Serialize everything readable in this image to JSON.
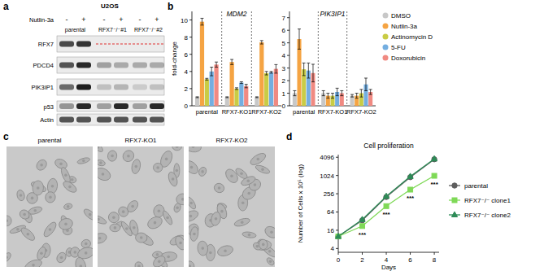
{
  "panel_labels": [
    "a",
    "b",
    "c",
    "d"
  ],
  "blot": {
    "cell_line": "U2OS",
    "treatment_label": "Nutlin-3a",
    "treatment": [
      "-",
      "+",
      "-",
      "+",
      "-",
      "+"
    ],
    "groups": [
      {
        "label": "parental",
        "lanes": [
          0,
          1
        ]
      },
      {
        "label": "RFX7⁻/⁻#1",
        "lanes": [
          2,
          3
        ]
      },
      {
        "label": "RFX7⁻/⁻#2",
        "lanes": [
          4,
          5
        ]
      }
    ],
    "rows": [
      {
        "name": "RFX7",
        "intensity": [
          0.75,
          0.85,
          0,
          0,
          0,
          0
        ],
        "knockout": true
      },
      {
        "name": "PDCD4",
        "intensity": [
          0.7,
          0.9,
          0.35,
          0.3,
          0.3,
          0.3
        ],
        "knockout": false
      },
      {
        "name": "PIK3IP1",
        "intensity": [
          0.6,
          0.95,
          0.2,
          0.25,
          0.15,
          0.2
        ],
        "knockout": false
      },
      {
        "name": "p53",
        "intensity": [
          0.4,
          0.9,
          0.35,
          0.9,
          0.35,
          0.9
        ],
        "knockout": false
      },
      {
        "name": "Actin",
        "intensity": [
          0.7,
          0.7,
          0.7,
          0.7,
          0.7,
          0.7
        ],
        "knockout": false
      }
    ]
  },
  "micrographs": {
    "titles": [
      "parental",
      "RFX7-KO1",
      "RFX7-KO2"
    ]
  },
  "chart_data": [
    {
      "type": "bar",
      "title": "MDM2",
      "y_label": "fold-change",
      "categories": [
        "parental",
        "RFX7-KO1",
        "RFX7-KO2"
      ],
      "ylim": [
        0,
        11
      ],
      "yticks": [
        0,
        2,
        4,
        6,
        8,
        10
      ],
      "grid": false,
      "series": [
        {
          "name": "DMSO",
          "color": "#c8c8c8",
          "values": [
            1,
            1,
            1
          ],
          "errors": [
            0.05,
            0.05,
            0.05
          ]
        },
        {
          "name": "Nutlin-3a",
          "color": "#f5a443",
          "values": [
            9.8,
            5.1,
            7.4
          ],
          "errors": [
            0.4,
            0.3,
            0.2
          ]
        },
        {
          "name": "Actinomycin D",
          "color": "#c9cc45",
          "values": [
            3.1,
            2.0,
            3.8
          ],
          "errors": [
            0.1,
            0.1,
            0.2
          ]
        },
        {
          "name": "5-FU",
          "color": "#74aee0",
          "values": [
            4.0,
            2.7,
            3.9
          ],
          "errors": [
            0.5,
            0.1,
            0.1
          ]
        },
        {
          "name": "Doxorubicin",
          "color": "#f08a82",
          "values": [
            4.8,
            2.3,
            4.3
          ],
          "errors": [
            0.3,
            0.2,
            0.5
          ]
        }
      ]
    },
    {
      "type": "bar",
      "title": "PIK3IP1",
      "categories": [
        "parental",
        "RFX7-KO1",
        "RFX7-KO2"
      ],
      "ylim": [
        0,
        7.5
      ],
      "yticks": [
        0,
        1,
        2,
        3,
        4,
        5,
        6,
        7
      ],
      "grid": false,
      "legend": "right",
      "series": [
        {
          "name": "DMSO",
          "color": "#c8c8c8",
          "values": [
            1,
            1,
            0.8
          ],
          "errors": [
            0.2,
            0.2,
            0.1
          ]
        },
        {
          "name": "Nutlin-3a",
          "color": "#f5a443",
          "values": [
            5.3,
            0.8,
            0.8
          ],
          "errors": [
            0.8,
            0.2,
            0.2
          ]
        },
        {
          "name": "Actinomycin D",
          "color": "#c9cc45",
          "values": [
            2.9,
            0.8,
            1.0
          ],
          "errors": [
            0.5,
            0.2,
            0.3
          ]
        },
        {
          "name": "5-FU",
          "color": "#74aee0",
          "values": [
            2.8,
            1.1,
            1.7
          ],
          "errors": [
            0.6,
            0.3,
            0.5
          ]
        },
        {
          "name": "Doxorubicin",
          "color": "#f08a82",
          "values": [
            2.6,
            1.0,
            1.1
          ],
          "errors": [
            0.7,
            0.2,
            0.2
          ]
        }
      ]
    },
    {
      "type": "line",
      "title": "Cell proliferation",
      "x_label": "Days",
      "y_label": "Number of Cells x 10⁵ (log)",
      "log": "y",
      "x": [
        0,
        2,
        4,
        6,
        8
      ],
      "xlim": [
        0,
        8.4
      ],
      "xticks": [
        0,
        2,
        4,
        6,
        8
      ],
      "ylim": [
        3,
        5000
      ],
      "yticks": [
        4,
        16,
        64,
        256,
        1024,
        4096
      ],
      "grid": false,
      "legend": "right",
      "series": [
        {
          "name": "parental",
          "color": "#5e5e5e",
          "marker": "circle",
          "values": [
            10,
            34,
            200,
            900,
            3500
          ]
        },
        {
          "name": "RFX7⁻/⁻ clone1",
          "color": "#7fd957",
          "marker": "square",
          "values": [
            10,
            22,
            100,
            350,
            1000
          ]
        },
        {
          "name": "RFX7⁻/⁻ clone2",
          "color": "#2e8b57",
          "marker": "triangle",
          "values": [
            10,
            36,
            210,
            950,
            3600
          ]
        }
      ],
      "annotations": [
        {
          "text": "***",
          "x": 2
        },
        {
          "text": "***",
          "x": 4
        },
        {
          "text": "***",
          "x": 6
        },
        {
          "text": "***",
          "x": 8
        }
      ]
    }
  ]
}
